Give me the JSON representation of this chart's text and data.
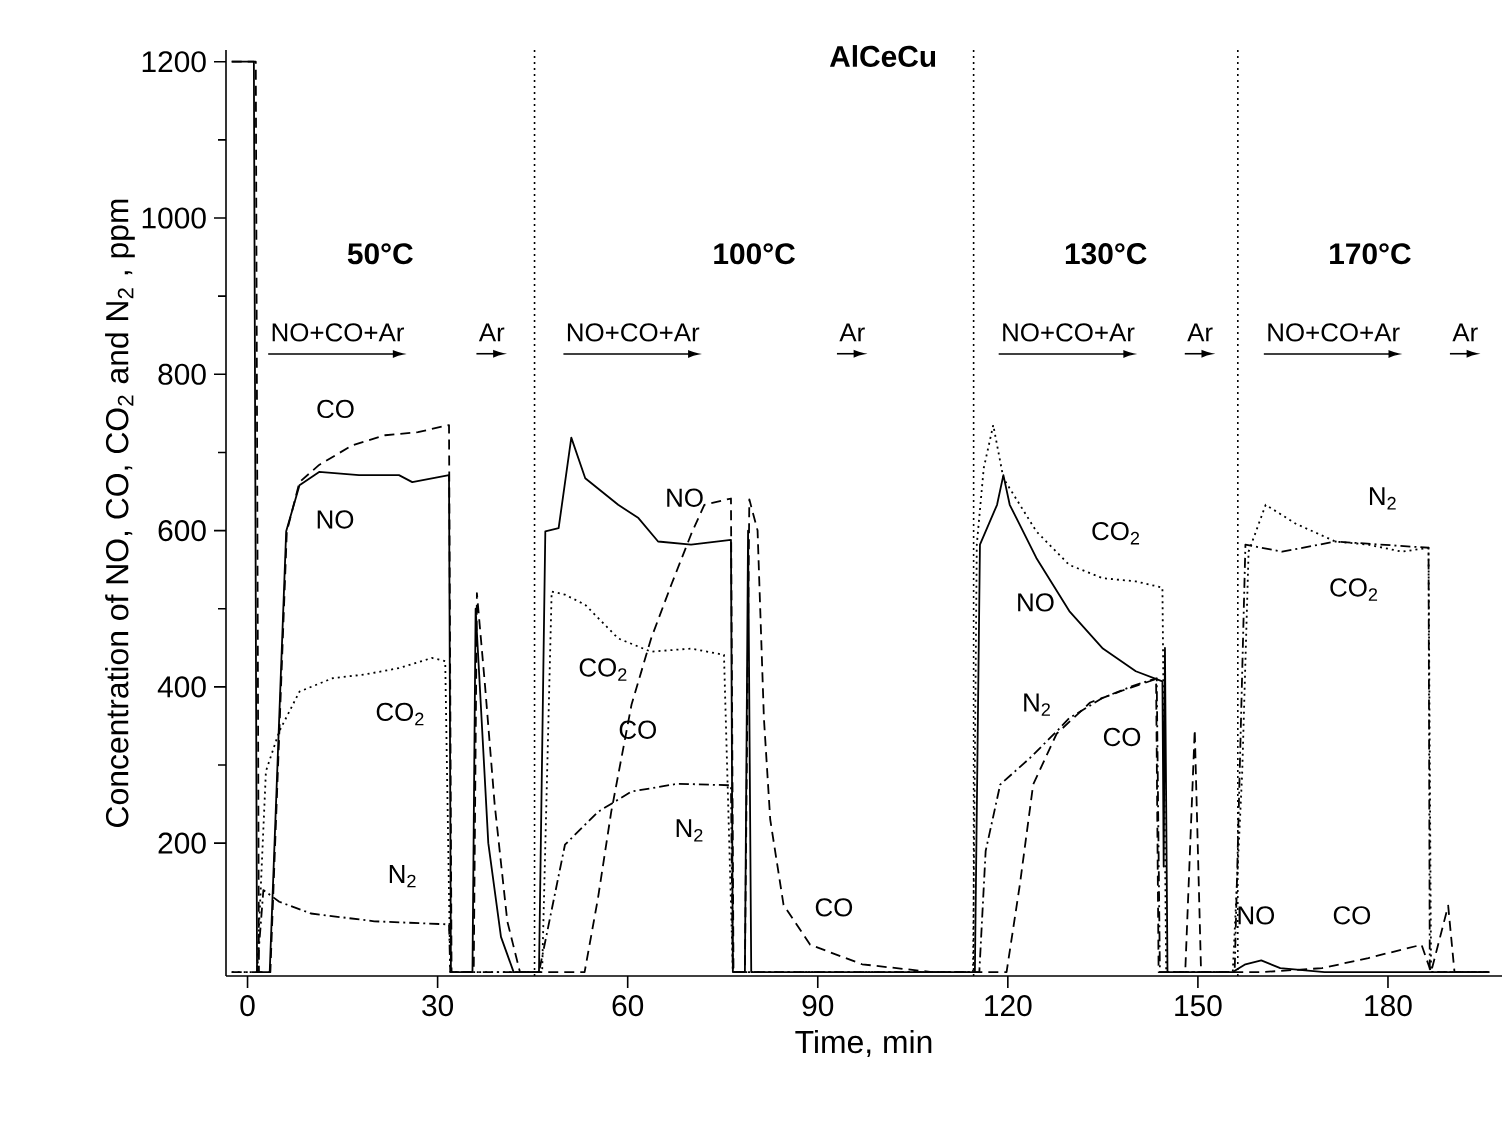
{
  "chart_data": {
    "type": "line",
    "title": "AlCeCu",
    "xlabel": "Time, min",
    "ylabel": "Concentration of  NO, CO, CO$_{2}$  and  N$_{2}$ , ppm",
    "xlim": [
      -3.4,
      198
    ],
    "xticks": [
      0,
      30,
      60,
      90,
      120,
      150,
      180
    ],
    "ylim": [
      30,
      1215
    ],
    "yticks": [
      200,
      400,
      600,
      800,
      1000,
      1200
    ],
    "series": [
      {
        "name": "NO",
        "color": "#000000",
        "line_style": "solid",
        "x": [
          -2.5,
          1.0,
          1.5,
          3.5,
          6.1,
          8.2,
          11.3,
          17.6,
          23.9,
          26.0,
          31.8,
          32.1,
          35.5,
          36.0,
          37.0,
          38.0,
          40.0,
          42.0,
          46.0,
          47.0,
          49.1,
          51.1,
          53.3,
          58.5,
          61.7,
          64.8,
          70.0,
          76.3,
          76.6,
          78.5,
          79.0,
          79.5,
          114.8,
          115.6,
          118.3,
          119.3,
          120.3,
          124.5,
          129.7,
          135.0,
          140.2,
          144.4,
          144.6,
          144.8,
          145.2,
          155.5,
          157.5,
          160.0,
          163.0,
          170.0,
          186.0,
          196.0
        ],
        "values": [
          1200,
          1200,
          35,
          35,
          599,
          658,
          675,
          671,
          671,
          662,
          671,
          35,
          35,
          500,
          350,
          200,
          80,
          35,
          35,
          599,
          603,
          719,
          667,
          633,
          616,
          586,
          582,
          588,
          35,
          35,
          600,
          35,
          35,
          582,
          633,
          671,
          633,
          565,
          497,
          449,
          420,
          407,
          170,
          450,
          35,
          35,
          45,
          50,
          40,
          35,
          35,
          35
        ]
      },
      {
        "name": "CO",
        "color": "#000000",
        "line_style": "dashed",
        "x": [
          -2.5,
          1.3,
          1.8,
          3.6,
          6.2,
          8.2,
          11.3,
          16.5,
          21.7,
          26.9,
          31.8,
          32.2,
          35.7,
          36.2,
          37.5,
          39.0,
          41.0,
          43.0,
          45.0,
          53.2,
          55.3,
          57.4,
          60.6,
          63.7,
          66.9,
          70.0,
          72.1,
          76.3,
          76.7,
          78.5,
          79.2,
          80.5,
          81.5,
          82.5,
          84.6,
          88.8,
          97.0,
          108.0,
          119.8,
          121.9,
          124.0,
          127.7,
          133.0,
          138.0,
          143.4,
          143.8,
          148.0,
          149.5,
          150.5,
          160.2,
          169.6,
          176.9,
          185.3,
          186.8,
          189.5,
          190.5,
          196.0
        ],
        "values": [
          1200,
          1200,
          35,
          35,
          599,
          662,
          684,
          709,
          722,
          726,
          735,
          35,
          35,
          520,
          400,
          250,
          100,
          35,
          35,
          35,
          129,
          240,
          377,
          462,
          531,
          595,
          633,
          641,
          35,
          35,
          640,
          600,
          360,
          230,
          121,
          70,
          45,
          35,
          35,
          147,
          275,
          340,
          380,
          395,
          410,
          35,
          35,
          345,
          35,
          35,
          40,
          53,
          70,
          35,
          120,
          35,
          35
        ]
      },
      {
        "name": "CO$_{2}$",
        "color": "#000000",
        "line_style": "dotted",
        "x": [
          -2.5,
          1.5,
          2.9,
          5.0,
          8.2,
          13.4,
          18.6,
          23.9,
          29.1,
          31.2,
          32.0,
          46.5,
          48.0,
          50.1,
          53.3,
          58.5,
          63.7,
          70.0,
          75.2,
          76.6,
          114.5,
          115.1,
          116.2,
          117.7,
          119.3,
          124.5,
          129.7,
          135.0,
          140.2,
          144.4,
          145.0,
          155.5,
          157.0,
          158.0,
          160.7,
          165.4,
          171.7,
          176.9,
          182.2,
          186.4,
          186.8,
          196.0
        ],
        "values": [
          35,
          35,
          292,
          343,
          394,
          411,
          416,
          424,
          437,
          433,
          35,
          35,
          522,
          518,
          505,
          462,
          445,
          449,
          441,
          35,
          35,
          582,
          680,
          735,
          667,
          599,
          556,
          539,
          535,
          527,
          35,
          35,
          292,
          573,
          633,
          609,
          586,
          582,
          573,
          578,
          35,
          35
        ]
      },
      {
        "name": "N$_{2}$",
        "color": "#000000",
        "line_style": "dashdot",
        "x": [
          -2.5,
          1.5,
          2.5,
          5.0,
          10.0,
          20.0,
          31.8,
          32.0,
          46.0,
          50.1,
          55.3,
          60.6,
          67.9,
          76.3,
          76.6,
          115.5,
          116.5,
          118.8,
          123.5,
          127.7,
          129.7,
          135.0,
          140.0,
          143.5,
          144.0,
          155.8,
          157.5,
          163.3,
          171.7,
          186.4,
          186.6,
          196.0
        ],
        "values": [
          35,
          35,
          140,
          125,
          110,
          100,
          96,
          35,
          35,
          198,
          240,
          266,
          276,
          274,
          35,
          35,
          190,
          275,
          309,
          343,
          360,
          386,
          402,
          411,
          35,
          35,
          582,
          573,
          586,
          578,
          35,
          35
        ]
      }
    ],
    "ref_lines": [
      {
        "axis": "x",
        "value": 45.3,
        "line_style": "dotted"
      },
      {
        "axis": "x",
        "value": 114.6,
        "line_style": "dotted"
      },
      {
        "axis": "x",
        "value": 156.3,
        "line_style": "dotted"
      }
    ],
    "annotations": [
      "50°C",
      "100°C",
      "130°C",
      "170°C",
      "NO+CO+Ar",
      "Ar",
      "NO+CO+Ar",
      "Ar",
      "NO+CO+Ar",
      "Ar",
      "NO+CO+Ar",
      "Ar"
    ]
  }
}
